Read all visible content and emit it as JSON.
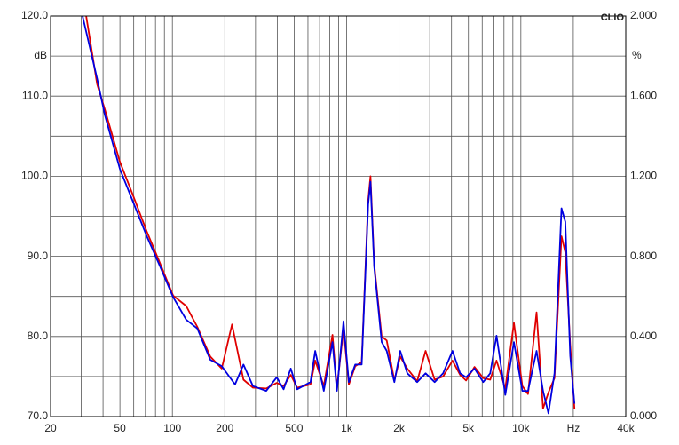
{
  "chart_data": {
    "type": "line",
    "brand": "CLIO",
    "y_unit": "dB",
    "y2_unit": "%",
    "log_x": true,
    "grid": true,
    "xlim": [
      20,
      40000
    ],
    "ylim": [
      70,
      120
    ],
    "y2lim": [
      0,
      2
    ],
    "xticks": [
      20,
      50,
      100,
      200,
      500,
      {
        "value": 1000,
        "label": "1k"
      },
      {
        "value": 2000,
        "label": "2k"
      },
      {
        "value": 5000,
        "label": "5k"
      },
      {
        "value": 10000,
        "label": "10k"
      },
      {
        "value": 20000,
        "label": "Hz"
      },
      {
        "value": 40000,
        "label": "40k"
      }
    ],
    "xgrid": [
      30,
      40,
      50,
      60,
      70,
      80,
      90,
      100,
      200,
      300,
      400,
      500,
      600,
      700,
      800,
      900,
      1000,
      2000,
      3000,
      4000,
      5000,
      6000,
      7000,
      8000,
      9000,
      10000,
      20000,
      30000
    ],
    "yticks": [
      {
        "value": 70,
        "label": "70.0"
      },
      {
        "value": 80,
        "label": "80.0"
      },
      {
        "value": 90,
        "label": "90.0"
      },
      {
        "value": 100,
        "label": "100.0"
      },
      {
        "value": 110,
        "label": "110.0"
      },
      {
        "value": 120,
        "label": "120.0"
      }
    ],
    "ygrid": [
      75,
      85,
      95,
      105,
      115
    ],
    "y2ticks": [
      {
        "value": 0,
        "label": "0.000"
      },
      {
        "value": 0.4,
        "label": "0.400"
      },
      {
        "value": 0.8,
        "label": "0.800"
      },
      {
        "value": 1.2,
        "label": "1.200"
      },
      {
        "value": 1.6,
        "label": "1.600"
      },
      {
        "value": 2,
        "label": "2.000"
      }
    ],
    "series": [
      {
        "color": "#e00000",
        "x": [
          32,
          37,
          41,
          50,
          59,
          71,
          84,
          101,
          120,
          139,
          165,
          192,
          220,
          256,
          290,
          346,
          397,
          435,
          478,
          520,
          620,
          660,
          740,
          830,
          880,
          960,
          1030,
          1120,
          1220,
          1330,
          1370,
          1440,
          1590,
          1700,
          1880,
          2030,
          2230,
          2540,
          2840,
          3200,
          3580,
          4050,
          4480,
          4850,
          5420,
          6080,
          6670,
          7250,
          8140,
          9120,
          10200,
          11000,
          12300,
          13400,
          14400,
          15600,
          17100,
          18000,
          19200,
          20300
        ],
        "values": [
          120,
          111.5,
          108.3,
          101.8,
          97.8,
          93.2,
          89.4,
          85.1,
          83.8,
          81.2,
          77.5,
          76.0,
          81.5,
          74.6,
          73.6,
          73.5,
          74.2,
          73.8,
          75.2,
          73.6,
          74.0,
          77.0,
          73.8,
          80.2,
          73.5,
          81.0,
          74.0,
          76.3,
          76.8,
          97.0,
          100.0,
          89.0,
          80.0,
          79.5,
          74.5,
          77.5,
          76.0,
          74.4,
          78.2,
          74.6,
          75.0,
          77.0,
          75.2,
          74.5,
          76.2,
          74.8,
          74.6,
          77.0,
          73.5,
          81.7,
          73.8,
          72.8,
          83.0,
          71.0,
          73.0,
          74.8,
          92.5,
          90.5,
          79.0,
          71.0
        ]
      },
      {
        "color": "#0000e0",
        "x": [
          30.5,
          37,
          41,
          50,
          59,
          71,
          84,
          101,
          120,
          139,
          165,
          192,
          229,
          256,
          290,
          346,
          397,
          435,
          478,
          520,
          620,
          660,
          740,
          830,
          880,
          960,
          1030,
          1120,
          1220,
          1330,
          1370,
          1440,
          1590,
          1700,
          1880,
          2030,
          2230,
          2540,
          2840,
          3200,
          3580,
          4050,
          4480,
          4850,
          5420,
          6080,
          6670,
          7250,
          8140,
          9120,
          10200,
          11000,
          12300,
          13400,
          14400,
          15600,
          17100,
          18000,
          19200,
          20300
        ],
        "values": [
          120,
          112.2,
          107.6,
          100.9,
          97.0,
          92.6,
          89.0,
          84.9,
          82.1,
          81.0,
          77.1,
          76.3,
          74.0,
          76.5,
          73.8,
          73.2,
          74.9,
          73.4,
          76.0,
          73.4,
          74.3,
          78.2,
          73.2,
          79.3,
          73.2,
          81.9,
          74.3,
          76.5,
          76.5,
          96.5,
          99.3,
          88.7,
          79.3,
          78.2,
          74.3,
          78.2,
          75.4,
          74.3,
          75.4,
          74.3,
          75.4,
          78.2,
          75.4,
          74.9,
          76.0,
          74.3,
          75.4,
          80.1,
          72.7,
          79.3,
          73.2,
          73.2,
          78.2,
          73.2,
          70.4,
          75.4,
          96.0,
          94.3,
          77.6,
          71.6
        ]
      }
    ]
  }
}
